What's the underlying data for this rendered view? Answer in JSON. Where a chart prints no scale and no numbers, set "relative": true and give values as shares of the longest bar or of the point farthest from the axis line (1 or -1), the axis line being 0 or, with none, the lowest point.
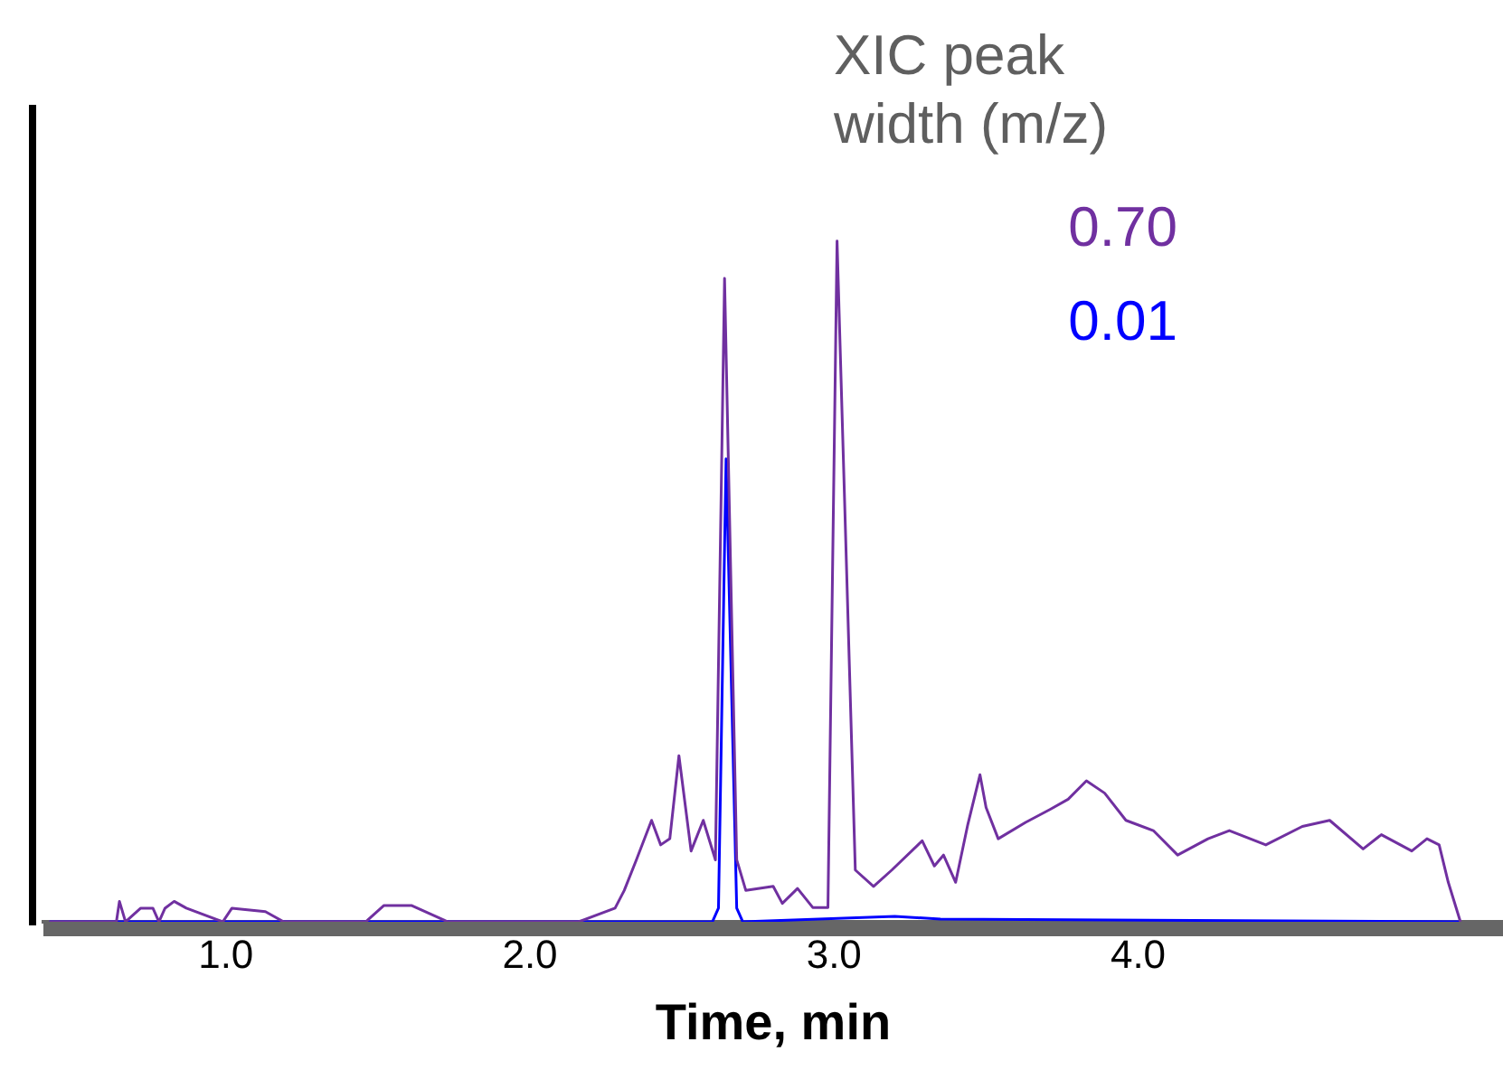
{
  "chart_data": {
    "type": "line",
    "relative": true,
    "xlabel": "Time, min",
    "legend_title": "XIC peak width (m/z)",
    "legend": "top right",
    "xlim": [
      0.4,
      5.2
    ],
    "xticks": [
      {
        "value": 1,
        "label": "1.0"
      },
      {
        "value": 2,
        "label": "2.0"
      },
      {
        "value": 3,
        "label": "3.0"
      },
      {
        "value": 4,
        "label": "4.0"
      }
    ],
    "grid": false,
    "series": [
      {
        "name": "0.70",
        "color": "#7030a0",
        "x": [
          0.42,
          0.64,
          0.65,
          0.67,
          0.72,
          0.76,
          0.78,
          0.8,
          0.83,
          0.87,
          0.99,
          1.02,
          1.13,
          1.19,
          1.46,
          1.52,
          1.61,
          1.73,
          2.16,
          2.28,
          2.31,
          2.35,
          2.4,
          2.43,
          2.46,
          2.49,
          2.53,
          2.57,
          2.61,
          2.64,
          2.68,
          2.71,
          2.8,
          2.83,
          2.88,
          2.93,
          2.98,
          3.01,
          3.07,
          3.13,
          3.19,
          3.29,
          3.33,
          3.36,
          3.4,
          3.44,
          3.48,
          3.5,
          3.54,
          3.63,
          3.71,
          3.77,
          3.83,
          3.89,
          3.96,
          4.05,
          4.13,
          4.23,
          4.3,
          4.42,
          4.54,
          4.63,
          4.74,
          4.8,
          4.9,
          4.95,
          4.99,
          5.02,
          5.06
        ],
        "values": [
          0,
          0,
          0.03,
          0,
          0.02,
          0.02,
          0,
          0.02,
          0.03,
          0.02,
          0,
          0.02,
          0.015,
          0,
          0,
          0.024,
          0.024,
          0,
          0,
          0.02,
          0.046,
          0.091,
          0.149,
          0.113,
          0.122,
          0.244,
          0.104,
          0.149,
          0.091,
          0.945,
          0.091,
          0.046,
          0.052,
          0.027,
          0.049,
          0.021,
          0.021,
          1,
          0.076,
          0.052,
          0.076,
          0.119,
          0.082,
          0.098,
          0.058,
          0.143,
          0.216,
          0.168,
          0.122,
          0.146,
          0.165,
          0.18,
          0.207,
          0.189,
          0.149,
          0.134,
          0.098,
          0.122,
          0.134,
          0.113,
          0.14,
          0.149,
          0.107,
          0.128,
          0.104,
          0.122,
          0.113,
          0.058,
          0
        ]
      },
      {
        "name": "0.01",
        "color": "#0000ff",
        "x": [
          0.42,
          2.6,
          2.62,
          2.645,
          2.68,
          2.7,
          3.2,
          3.35,
          5.06
        ],
        "values": [
          0,
          0,
          0.02,
          0.68,
          0.02,
          0,
          0.008,
          0.004,
          0
        ]
      }
    ]
  }
}
